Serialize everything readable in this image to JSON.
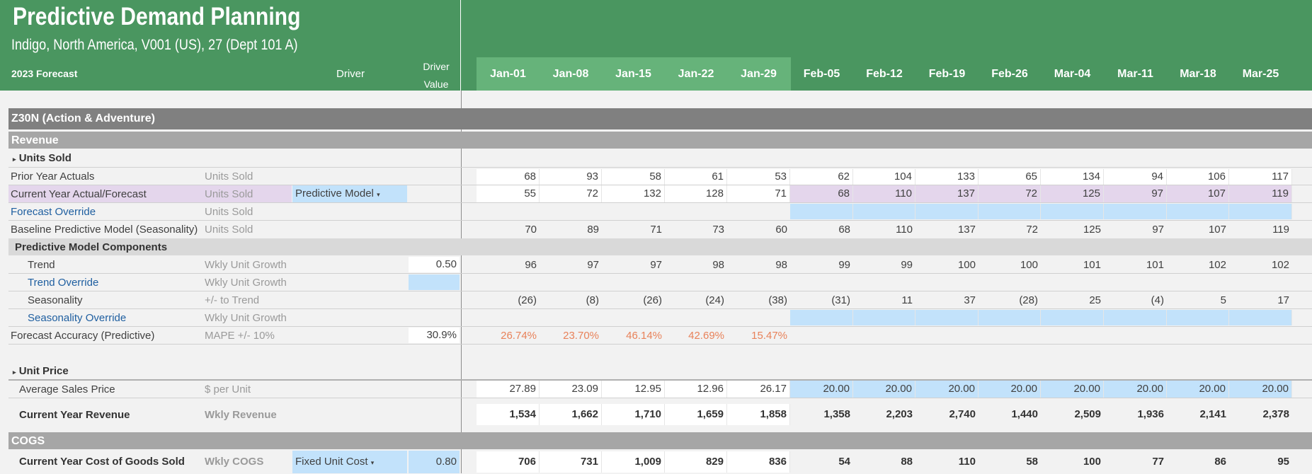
{
  "header": {
    "title": "Predictive Demand Planning",
    "subtitle": "Indigo, North America, V001 (US), 27 (Dept 101 A)",
    "col_forecast": "2023 Forecast",
    "col_driver": "Driver",
    "col_driver_value": "Driver Value",
    "dates": [
      "Jan-01",
      "Jan-08",
      "Jan-15",
      "Jan-22",
      "Jan-29",
      "Feb-05",
      "Feb-12",
      "Feb-19",
      "Feb-26",
      "Mar-04",
      "Mar-11",
      "Mar-18",
      "Mar-25"
    ]
  },
  "category": "Z30N (Action & Adventure)",
  "sections": {
    "revenue": "Revenue",
    "units_sold": "Units Sold",
    "components": "Predictive Model Components",
    "unit_price": "Unit Price",
    "cogs": "COGS"
  },
  "rows": {
    "prior_year": {
      "label": "Prior Year Actuals",
      "unit": "Units Sold",
      "values": [
        "68",
        "93",
        "58",
        "61",
        "53",
        "62",
        "104",
        "133",
        "65",
        "134",
        "94",
        "106",
        "117"
      ]
    },
    "current_year": {
      "label": "Current Year Actual/Forecast",
      "unit": "Units Sold",
      "driver": "Predictive Model",
      "values": [
        "55",
        "72",
        "132",
        "128",
        "71",
        "68",
        "110",
        "137",
        "72",
        "125",
        "97",
        "107",
        "119"
      ]
    },
    "forecast_override": {
      "label": "Forecast Override",
      "unit": "Units Sold"
    },
    "baseline": {
      "label": "Baseline Predictive Model (Seasonality)",
      "unit": "Units Sold",
      "values": [
        "70",
        "89",
        "71",
        "73",
        "60",
        "68",
        "110",
        "137",
        "72",
        "125",
        "97",
        "107",
        "119"
      ]
    },
    "trend": {
      "label": "Trend",
      "unit": "Wkly Unit Growth",
      "driver_value": "0.50",
      "values": [
        "96",
        "97",
        "97",
        "98",
        "98",
        "99",
        "99",
        "100",
        "100",
        "101",
        "101",
        "102",
        "102"
      ]
    },
    "trend_override": {
      "label": "Trend Override",
      "unit": "Wkly Unit Growth"
    },
    "seasonality": {
      "label": "Seasonality",
      "unit": "+/- to Trend",
      "values": [
        "(26)",
        "(8)",
        "(26)",
        "(24)",
        "(38)",
        "(31)",
        "11",
        "37",
        "(28)",
        "25",
        "(4)",
        "5",
        "17"
      ]
    },
    "seasonality_override": {
      "label": "Seasonality Override",
      "unit": "Wkly Unit Growth"
    },
    "accuracy": {
      "label": "Forecast Accuracy (Predictive)",
      "unit": "MAPE +/- 10%",
      "driver_value": "30.9%",
      "values": [
        "26.74%",
        "23.70%",
        "46.14%",
        "42.69%",
        "15.47%"
      ]
    },
    "avg_price": {
      "label": "Average Sales Price",
      "unit": "$ per Unit",
      "values": [
        "27.89",
        "23.09",
        "12.95",
        "12.96",
        "26.17",
        "20.00",
        "20.00",
        "20.00",
        "20.00",
        "20.00",
        "20.00",
        "20.00",
        "20.00"
      ]
    },
    "revenue": {
      "label": "Current Year Revenue",
      "unit": "Wkly Revenue",
      "values": [
        "1,534",
        "1,662",
        "1,710",
        "1,659",
        "1,858",
        "1,358",
        "2,203",
        "2,740",
        "1,440",
        "2,509",
        "1,936",
        "2,141",
        "2,378"
      ]
    },
    "cogs": {
      "label": "Current Year Cost of Goods Sold",
      "unit": "Wkly COGS",
      "driver": "Fixed Unit Cost",
      "driver_value": "0.80",
      "values": [
        "706",
        "731",
        "1,009",
        "829",
        "836",
        "54",
        "88",
        "110",
        "58",
        "100",
        "77",
        "86",
        "95"
      ]
    }
  },
  "colors": {
    "header_green": "#4a9660",
    "highlight_green": "#66b37a",
    "override_blue": "#c2e2fb",
    "forecast_purple": "#e4d6ec",
    "accuracy_orange": "#e8825a"
  }
}
